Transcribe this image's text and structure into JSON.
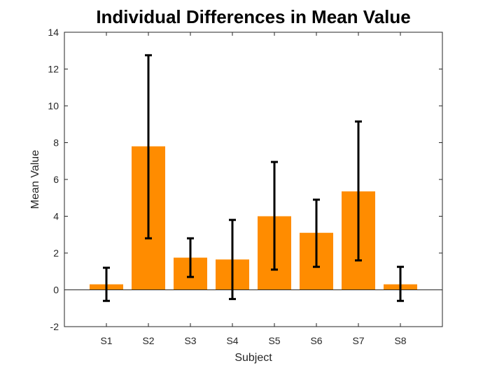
{
  "chart_data": {
    "type": "bar",
    "title": "Individual Differences in Mean Value",
    "xlabel": "Subject",
    "ylabel": "Mean Value",
    "categories": [
      "S1",
      "S2",
      "S3",
      "S4",
      "S5",
      "S6",
      "S7",
      "S8"
    ],
    "values": [
      0.3,
      7.8,
      1.75,
      1.65,
      4.0,
      3.1,
      5.35,
      0.3
    ],
    "error_bars": {
      "lower": [
        -0.6,
        2.8,
        0.7,
        -0.5,
        1.1,
        1.25,
        1.6,
        -0.6
      ],
      "upper": [
        1.2,
        12.75,
        2.8,
        3.8,
        6.95,
        4.9,
        9.15,
        1.25
      ]
    },
    "ylim": [
      -2,
      14
    ],
    "yticks": [
      -2,
      0,
      2,
      4,
      6,
      8,
      10,
      12,
      14
    ],
    "bar_color": "#ff8c00",
    "errorbar_color": "#000000",
    "grid": false,
    "zero_line": true
  }
}
